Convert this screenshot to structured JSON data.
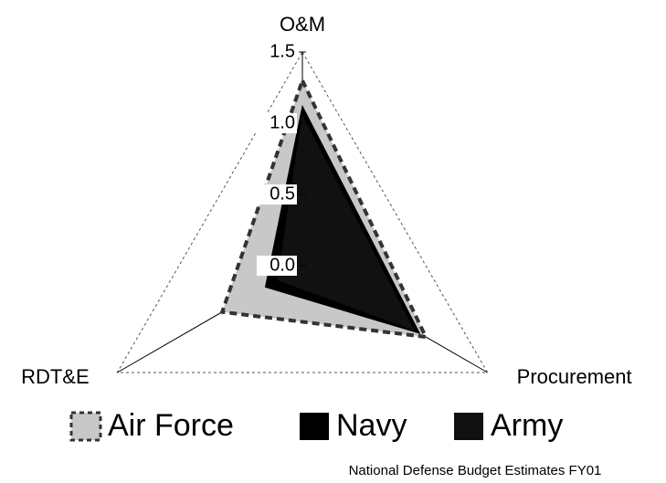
{
  "chart_data": {
    "type": "radar",
    "categories": [
      "O&M",
      "Procurement",
      "RDT&E"
    ],
    "series": [
      {
        "name": "Air Force",
        "color": "#c8c8c8",
        "values": [
          1.3,
          1.0,
          0.65
        ]
      },
      {
        "name": "Navy",
        "color": "#000000",
        "values": [
          1.12,
          0.95,
          0.3
        ]
      },
      {
        "name": "Army",
        "color": "#111111",
        "values": [
          1.05,
          0.9,
          0.2
        ]
      }
    ],
    "ylim": [
      0,
      1.5
    ],
    "yticks": [
      {
        "value": 0,
        "label": "0.0"
      },
      {
        "value": 0.5,
        "label": "0.5"
      },
      {
        "value": 1,
        "label": "1.0"
      },
      {
        "value": 1.5,
        "label": "1.5"
      }
    ],
    "legend": "bottom",
    "annotation": "National Defense Budget Estimates FY01"
  }
}
